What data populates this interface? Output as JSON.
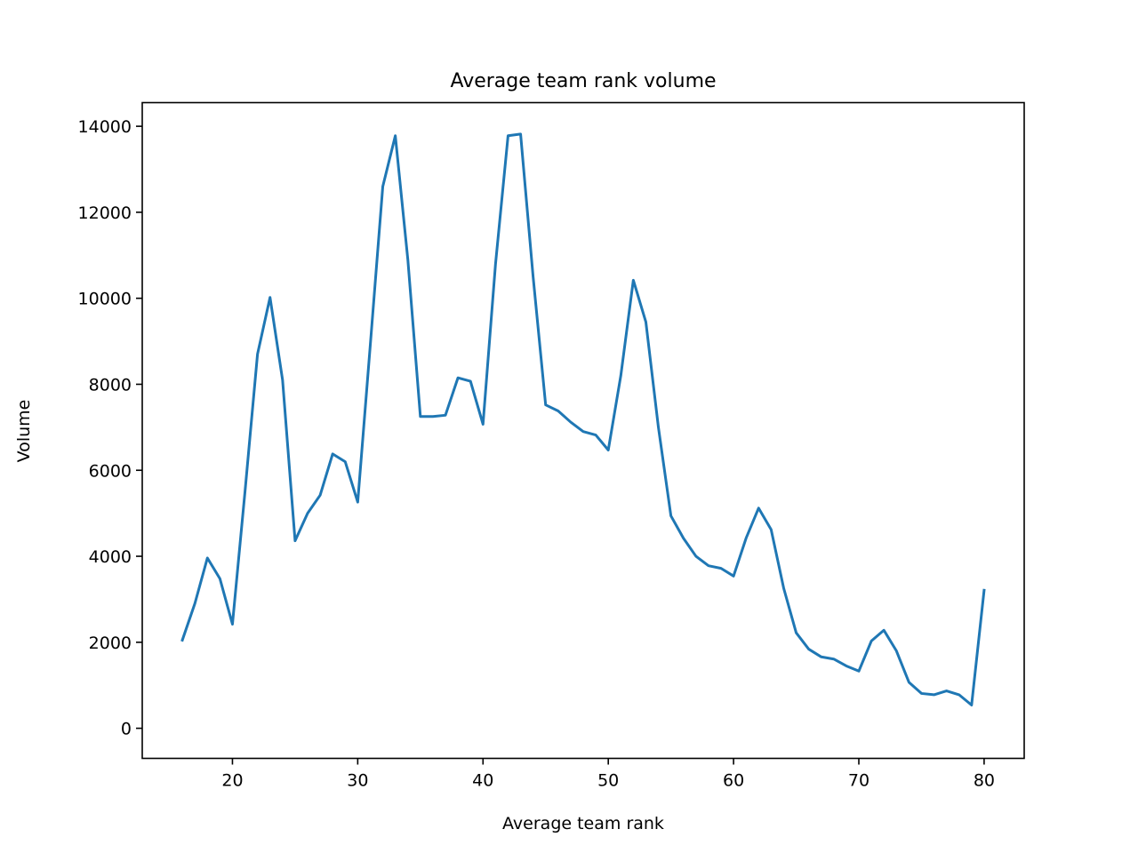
{
  "colors": {
    "line": "#1f77b4",
    "axes": "#000000",
    "background": "#ffffff"
  },
  "chart_data": {
    "type": "line",
    "title": "Average team rank volume",
    "xlabel": "Average team rank",
    "ylabel": "Volume",
    "xlim": [
      12.8,
      83.2
    ],
    "ylim": [
      -700,
      14550
    ],
    "xticks": [
      20,
      30,
      40,
      50,
      60,
      70,
      80
    ],
    "xtick_labels": [
      "20",
      "30",
      "40",
      "50",
      "60",
      "70",
      "80"
    ],
    "yticks": [
      0,
      2000,
      4000,
      6000,
      8000,
      10000,
      12000,
      14000
    ],
    "ytick_labels": [
      "0",
      "2000",
      "4000",
      "6000",
      "8000",
      "10000",
      "12000",
      "14000"
    ],
    "grid": false,
    "series": [
      {
        "x": [
          16,
          17,
          18,
          19,
          20,
          21,
          22,
          23,
          24,
          25,
          26,
          27,
          28,
          29,
          30,
          31,
          32,
          33,
          34,
          35,
          36,
          37,
          38,
          39,
          40,
          41,
          42,
          43,
          44,
          45,
          46,
          47,
          48,
          49,
          50,
          51,
          52,
          53,
          54,
          55,
          56,
          57,
          58,
          59,
          60,
          61,
          62,
          63,
          64,
          65,
          66,
          67,
          68,
          69,
          70,
          71,
          72,
          73,
          74,
          75,
          76,
          77,
          78,
          79,
          80
        ],
        "y": [
          2050,
          2900,
          3960,
          3480,
          2420,
          5500,
          8700,
          10020,
          8100,
          4360,
          5000,
          5420,
          6380,
          6200,
          5260,
          8900,
          12600,
          13780,
          10900,
          7250,
          7250,
          7280,
          8150,
          8070,
          7070,
          10800,
          13780,
          13820,
          10500,
          7520,
          7380,
          7120,
          6900,
          6820,
          6470,
          8200,
          10420,
          9450,
          7000,
          4940,
          4420,
          4000,
          3780,
          3720,
          3540,
          4420,
          5120,
          4620,
          3260,
          2220,
          1840,
          1660,
          1610,
          1450,
          1330,
          2030,
          2280,
          1800,
          1070,
          810,
          780,
          870,
          780,
          540,
          3210
        ]
      }
    ]
  }
}
